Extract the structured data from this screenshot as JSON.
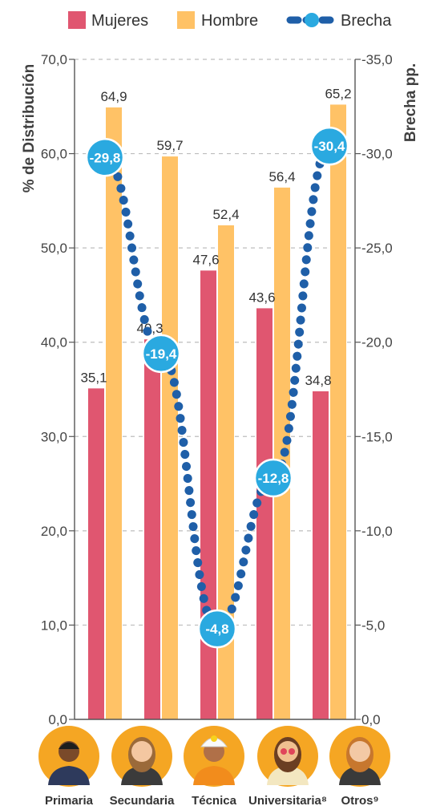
{
  "chart_data": {
    "type": "bar",
    "categories": [
      "Primaria",
      "Secundaria",
      "Técnica",
      "Universitaria⁸",
      "Otros⁹"
    ],
    "series": [
      {
        "name": "Mujeres",
        "values": [
          35.1,
          40.3,
          47.6,
          43.6,
          34.8
        ],
        "color": "#e05670"
      },
      {
        "name": "Hombre",
        "values": [
          64.9,
          59.7,
          52.4,
          56.4,
          65.2
        ],
        "color": "#ffc266"
      }
    ],
    "line_series": {
      "name": "Brecha",
      "values": [
        -29.8,
        -19.4,
        -4.8,
        -12.8,
        -30.4
      ],
      "color": "#1f5fa8",
      "marker_color": "#2aa9e0"
    },
    "ylabel": "% de Distribución",
    "y2label": "Brecha pp.",
    "ylim": [
      0,
      70
    ],
    "y2lim": [
      0,
      -35
    ],
    "y_ticks": [
      "0,0",
      "10,0",
      "20,0",
      "30,0",
      "40,0",
      "50,0",
      "60,0",
      "70,0"
    ],
    "y2_ticks": [
      "0,0",
      "-5,0",
      "-10,0",
      "-15,0",
      "-20,0",
      "-25,0",
      "-30,0",
      "-35,0"
    ],
    "bar_labels": {
      "Mujeres": [
        "35,1",
        "40,3",
        "47,6",
        "43,6",
        "34,8"
      ],
      "Hombre": [
        "64,9",
        "59,7",
        "52,4",
        "56,4",
        "65,2"
      ]
    },
    "line_labels": [
      "-29,8",
      "-19,4",
      "-4,8",
      "-12,8",
      "-30,4"
    ],
    "grid": "horizontal dashed",
    "legend_position": "top",
    "category_icons": [
      "boy-student-icon",
      "girl-student-icon",
      "technician-helmet-icon",
      "university-woman-icon",
      "woman-other-icon"
    ]
  }
}
